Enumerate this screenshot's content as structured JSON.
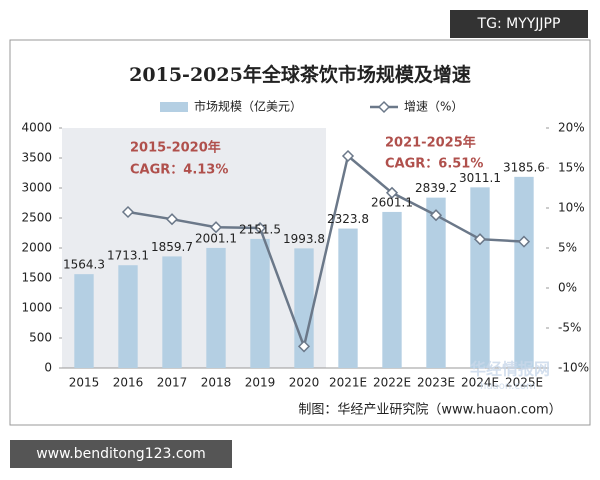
{
  "chart_data": {
    "type": "combo",
    "title": "2015-2025年全球茶饮市场规模及增速",
    "categories": [
      "2015",
      "2016",
      "2017",
      "2018",
      "2019",
      "2020",
      "2021E",
      "2022E",
      "2023E",
      "2024E",
      "2025E"
    ],
    "series": [
      {
        "name": "市场规模（亿美元）",
        "type": "bar",
        "color": "#b4cfe3",
        "values": [
          1564.3,
          1713.1,
          1859.7,
          2001.1,
          2151.5,
          1993.8,
          2323.8,
          2601.1,
          2839.2,
          3011.1,
          3185.6
        ]
      },
      {
        "name": "增速（%）",
        "type": "line",
        "axis": "y2",
        "color": "#6b7889",
        "values": [
          null,
          9.5,
          8.6,
          7.6,
          7.5,
          -7.3,
          16.5,
          11.9,
          9.1,
          6.1,
          5.8
        ]
      }
    ],
    "ylim": [
      0,
      4000
    ],
    "yticks": [
      0,
      500,
      1000,
      1500,
      2000,
      2500,
      3000,
      3500,
      4000
    ],
    "y2lim": [
      -10,
      20
    ],
    "y2ticks": [
      {
        "value": -10,
        "label": "-10%"
      },
      {
        "value": -5,
        "label": "-5%"
      },
      {
        "value": 0,
        "label": "0%"
      },
      {
        "value": 5,
        "label": "5%"
      },
      {
        "value": 10,
        "label": "10%"
      },
      {
        "value": 15,
        "label": "15%"
      },
      {
        "value": 20,
        "label": "20%"
      }
    ],
    "annotations": [
      "2015-2020年",
      "CAGR：4.13%",
      "2021-2025年",
      "CAGR：6.51%"
    ],
    "source": "制图：华经产业研究院（www.huaon.com）",
    "watermarks": [
      "TG: MYYJJPP",
      "www.benditong123.com",
      "华经情报网",
      "huaon.com"
    ],
    "grid": false
  }
}
